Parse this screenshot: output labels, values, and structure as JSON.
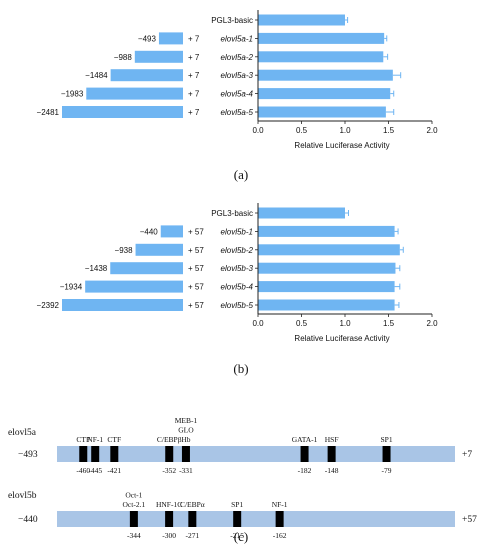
{
  "chart_data": [
    {
      "type": "bar",
      "panel": "(a)",
      "categories": [
        "PGL3-basic",
        "elovl5a-1",
        "elovl5a-2",
        "elovl5a-3",
        "elovl5a-4",
        "elovl5a-5"
      ],
      "italic": [
        false,
        true,
        true,
        true,
        true,
        true
      ],
      "values": [
        1.0,
        1.45,
        1.44,
        1.55,
        1.52,
        1.47
      ],
      "errors": [
        0.03,
        0.03,
        0.05,
        0.09,
        0.04,
        0.09
      ],
      "constructs": [
        {
          "start": "−493",
          "end": "+ 7",
          "len": 493
        },
        {
          "start": "−988",
          "end": "+ 7",
          "len": 988
        },
        {
          "start": "−1484",
          "end": "+ 7",
          "len": 1484
        },
        {
          "start": "−1983",
          "end": "+ 7",
          "len": 1983
        },
        {
          "start": "−2481",
          "end": "+ 7",
          "len": 2481
        }
      ],
      "xlabel": "Relative Luciferase Activity",
      "xlim": [
        0.0,
        2.0
      ],
      "xticks": [
        "0.0",
        "0.5",
        "1.0",
        "1.5",
        "2.0"
      ]
    },
    {
      "type": "bar",
      "panel": "(b)",
      "categories": [
        "PGL3-basic",
        "elovl5b-1",
        "elovl5b-2",
        "elovl5b-3",
        "elovl5b-4",
        "elovl5b-5"
      ],
      "italic": [
        false,
        true,
        true,
        true,
        true,
        true
      ],
      "values": [
        1.0,
        1.57,
        1.63,
        1.58,
        1.57,
        1.57
      ],
      "errors": [
        0.04,
        0.04,
        0.04,
        0.05,
        0.06,
        0.05
      ],
      "constructs": [
        {
          "start": "−440",
          "end": "+ 57",
          "len": 440
        },
        {
          "start": "−938",
          "end": "+ 57",
          "len": 938
        },
        {
          "start": "−1438",
          "end": "+ 57",
          "len": 1438
        },
        {
          "start": "−1934",
          "end": "+ 57",
          "len": 1934
        },
        {
          "start": "−2392",
          "end": "+ 57",
          "len": 2392
        }
      ],
      "xlabel": "Relative Luciferase Activity",
      "xlim": [
        0.0,
        2.0
      ],
      "xticks": [
        "0.0",
        "0.5",
        "1.0",
        "1.5",
        "2.0"
      ]
    }
  ],
  "panel_c": {
    "caption": "(c)",
    "tracks": [
      {
        "name": "elovl5a",
        "start_label": "−493",
        "end_label": "+7",
        "start": -493,
        "end": 7,
        "sites": [
          {
            "pos": -460,
            "label": "-460",
            "tf": [
              "CTF"
            ]
          },
          {
            "pos": -445,
            "label": "-445",
            "tf": [
              "NF-1"
            ]
          },
          {
            "pos": -421,
            "label": "-421",
            "tf": [
              "CTF"
            ]
          },
          {
            "pos": -352,
            "label": "-352",
            "tf": [
              "C/EBPβ"
            ]
          },
          {
            "pos": -331,
            "label": "-331",
            "tf": [
              "MEB-1",
              "GLO",
              "Hb"
            ]
          },
          {
            "pos": -182,
            "label": "-182",
            "tf": [
              "GATA-1"
            ]
          },
          {
            "pos": -148,
            "label": "-148",
            "tf": [
              "HSF"
            ]
          },
          {
            "pos": -79,
            "label": "-79",
            "tf": [
              "SP1"
            ]
          }
        ]
      },
      {
        "name": "elovl5b",
        "start_label": "−440",
        "end_label": "+57",
        "start": -440,
        "end": 57,
        "sites": [
          {
            "pos": -344,
            "label": "-344",
            "tf": [
              "Oct-1",
              "Oct-2.1"
            ]
          },
          {
            "pos": -300,
            "label": "-300",
            "tf": [
              "HNF-1C"
            ]
          },
          {
            "pos": -271,
            "label": "-271",
            "tf": [
              "C/EBPα"
            ]
          },
          {
            "pos": -215,
            "label": "-215",
            "tf": [
              "SP1"
            ]
          },
          {
            "pos": -162,
            "label": "-162",
            "tf": [
              "NF-1"
            ]
          }
        ]
      }
    ]
  },
  "colors": {
    "bar": "#6fb5f2",
    "error": "#6fb5f2",
    "track": "#a9c5e6",
    "site": "#000000",
    "axis": "#222222"
  }
}
